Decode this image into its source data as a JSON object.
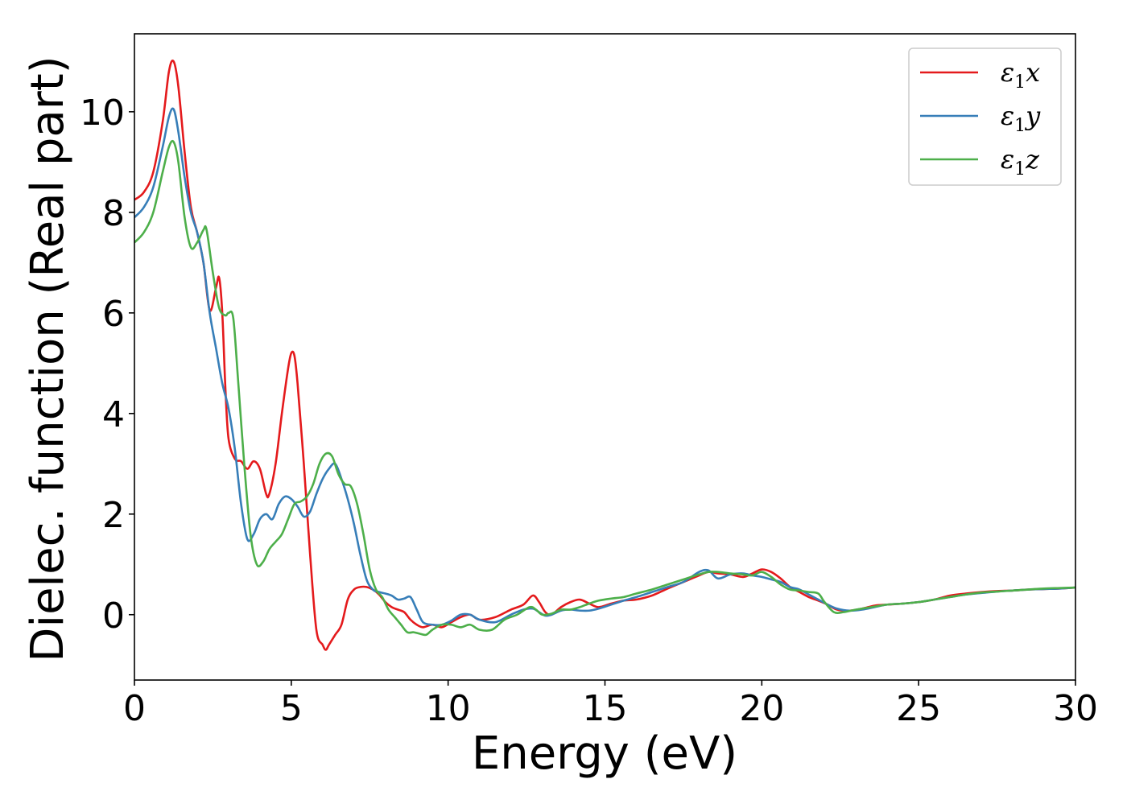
{
  "chart_data": {
    "type": "line",
    "title": "",
    "xlabel": "Energy (eV)",
    "ylabel": "Dielec. function (Real part)",
    "xlim": [
      0,
      30
    ],
    "ylim": [
      -1.3,
      11.55
    ],
    "xticks": [
      0,
      5,
      10,
      15,
      20,
      25,
      30
    ],
    "xtick_labels": [
      "0",
      "5",
      "10",
      "15",
      "20",
      "25",
      "30"
    ],
    "yticks": [
      0,
      2,
      4,
      6,
      8,
      10
    ],
    "ytick_labels": [
      "0",
      "2",
      "4",
      "6",
      "8",
      "10"
    ],
    "grid": false,
    "legend_position": "top-right",
    "series": [
      {
        "name": "ε1x",
        "legend_main": "ε",
        "legend_sub": "1",
        "legend_var": "x",
        "color": "#e41a1c",
        "x": [
          0,
          0.3,
          0.6,
          0.9,
          1.1,
          1.25,
          1.4,
          1.6,
          1.8,
          2.0,
          2.2,
          2.4,
          2.6,
          2.7,
          2.8,
          2.9,
          3.0,
          3.2,
          3.4,
          3.6,
          3.8,
          4.0,
          4.2,
          4.3,
          4.5,
          4.7,
          4.9,
          5.0,
          5.1,
          5.2,
          5.4,
          5.6,
          5.8,
          6.0,
          6.1,
          6.2,
          6.4,
          6.6,
          6.8,
          7.0,
          7.2,
          7.4,
          7.6,
          7.8,
          8.0,
          8.2,
          8.4,
          8.6,
          8.8,
          9.0,
          9.2,
          9.5,
          9.8,
          10.1,
          10.4,
          10.7,
          11.0,
          11.5,
          12.0,
          12.4,
          12.7,
          12.9,
          13.1,
          13.3,
          13.6,
          13.9,
          14.2,
          14.5,
          14.8,
          15.2,
          15.6,
          16.0,
          16.5,
          17.0,
          17.5,
          18.0,
          18.3,
          18.6,
          19.0,
          19.4,
          19.7,
          20.0,
          20.3,
          20.6,
          20.9,
          21.2,
          21.5,
          21.8,
          22.1,
          22.4,
          22.8,
          23.2,
          23.6,
          24.0,
          24.5,
          25.0,
          25.5,
          26.0,
          26.5,
          27.0,
          27.5,
          28.0,
          28.5,
          29.0,
          29.5,
          30.0
        ],
        "y": [
          8.25,
          8.4,
          8.8,
          9.8,
          10.8,
          11.0,
          10.5,
          9.2,
          8.1,
          7.6,
          7.0,
          6.05,
          6.5,
          6.7,
          6.0,
          4.5,
          3.5,
          3.1,
          3.05,
          2.9,
          3.05,
          2.9,
          2.4,
          2.4,
          3.0,
          4.0,
          4.9,
          5.2,
          5.15,
          4.6,
          3.0,
          1.2,
          -0.3,
          -0.6,
          -0.7,
          -0.6,
          -0.4,
          -0.2,
          0.3,
          0.5,
          0.55,
          0.55,
          0.5,
          0.4,
          0.25,
          0.15,
          0.1,
          0.05,
          -0.1,
          -0.2,
          -0.25,
          -0.2,
          -0.25,
          -0.15,
          -0.05,
          0.0,
          -0.1,
          -0.05,
          0.1,
          0.2,
          0.38,
          0.25,
          0.05,
          0.0,
          0.15,
          0.25,
          0.3,
          0.22,
          0.15,
          0.22,
          0.28,
          0.3,
          0.38,
          0.52,
          0.65,
          0.78,
          0.85,
          0.82,
          0.8,
          0.75,
          0.82,
          0.9,
          0.85,
          0.72,
          0.55,
          0.45,
          0.35,
          0.28,
          0.2,
          0.1,
          0.08,
          0.12,
          0.18,
          0.2,
          0.22,
          0.25,
          0.3,
          0.38,
          0.42,
          0.45,
          0.47,
          0.48,
          0.5,
          0.51,
          0.52,
          0.54
        ]
      },
      {
        "name": "ε1y",
        "legend_main": "ε",
        "legend_sub": "1",
        "legend_var": "y",
        "color": "#377eb8",
        "x": [
          0,
          0.3,
          0.6,
          0.9,
          1.1,
          1.25,
          1.4,
          1.6,
          1.8,
          2.0,
          2.2,
          2.4,
          2.6,
          2.8,
          3.0,
          3.2,
          3.4,
          3.6,
          3.8,
          4.0,
          4.2,
          4.4,
          4.6,
          4.8,
          5.0,
          5.2,
          5.4,
          5.6,
          5.8,
          6.0,
          6.2,
          6.4,
          6.6,
          6.8,
          7.0,
          7.2,
          7.4,
          7.6,
          7.8,
          8.0,
          8.2,
          8.4,
          8.6,
          8.8,
          9.0,
          9.2,
          9.5,
          9.8,
          10.1,
          10.4,
          10.7,
          11.0,
          11.5,
          12.0,
          12.4,
          12.7,
          12.9,
          13.1,
          13.3,
          13.6,
          13.9,
          14.2,
          14.5,
          14.8,
          15.2,
          15.6,
          16.0,
          16.5,
          17.0,
          17.5,
          18.0,
          18.3,
          18.6,
          19.0,
          19.4,
          19.7,
          20.0,
          20.3,
          20.6,
          20.9,
          21.2,
          21.5,
          21.8,
          22.1,
          22.4,
          22.8,
          23.2,
          23.6,
          24.0,
          24.5,
          25.0,
          25.5,
          26.0,
          26.5,
          27.0,
          27.5,
          28.0,
          28.5,
          29.0,
          29.5,
          30.0
        ],
        "y": [
          7.9,
          8.1,
          8.5,
          9.3,
          9.9,
          10.05,
          9.6,
          8.7,
          8.0,
          7.6,
          7.0,
          6.0,
          5.3,
          4.6,
          4.1,
          3.3,
          2.2,
          1.5,
          1.6,
          1.9,
          2.0,
          1.9,
          2.2,
          2.35,
          2.3,
          2.15,
          1.95,
          2.05,
          2.4,
          2.7,
          2.9,
          3.0,
          2.7,
          2.3,
          1.8,
          1.2,
          0.7,
          0.5,
          0.45,
          0.42,
          0.38,
          0.3,
          0.32,
          0.35,
          0.1,
          -0.15,
          -0.2,
          -0.2,
          -0.12,
          0.0,
          0.0,
          -0.1,
          -0.15,
          0.0,
          0.1,
          0.12,
          0.05,
          -0.02,
          0.0,
          0.08,
          0.1,
          0.08,
          0.08,
          0.12,
          0.2,
          0.28,
          0.35,
          0.45,
          0.55,
          0.65,
          0.85,
          0.88,
          0.72,
          0.8,
          0.82,
          0.78,
          0.75,
          0.7,
          0.65,
          0.55,
          0.5,
          0.4,
          0.3,
          0.2,
          0.12,
          0.08,
          0.1,
          0.15,
          0.2,
          0.22,
          0.25,
          0.3,
          0.35,
          0.4,
          0.43,
          0.46,
          0.48,
          0.5,
          0.51,
          0.52,
          0.54
        ]
      },
      {
        "name": "ε1z",
        "legend_main": "ε",
        "legend_sub": "1",
        "legend_var": "z",
        "color": "#4daf4a",
        "x": [
          0,
          0.3,
          0.6,
          0.9,
          1.1,
          1.25,
          1.4,
          1.6,
          1.8,
          2.0,
          2.2,
          2.3,
          2.5,
          2.7,
          2.9,
          3.0,
          3.15,
          3.3,
          3.5,
          3.7,
          3.9,
          4.1,
          4.3,
          4.5,
          4.7,
          4.9,
          5.1,
          5.3,
          5.5,
          5.7,
          5.9,
          6.1,
          6.3,
          6.5,
          6.7,
          6.9,
          7.1,
          7.3,
          7.5,
          7.7,
          7.9,
          8.1,
          8.3,
          8.5,
          8.7,
          8.9,
          9.1,
          9.3,
          9.5,
          9.8,
          10.1,
          10.4,
          10.7,
          11.0,
          11.4,
          11.8,
          12.2,
          12.6,
          12.8,
          13.0,
          13.3,
          13.6,
          13.9,
          14.2,
          14.5,
          14.8,
          15.2,
          15.6,
          16.0,
          16.5,
          17.0,
          17.5,
          18.0,
          18.3,
          18.6,
          19.0,
          19.4,
          19.7,
          20.0,
          20.3,
          20.6,
          20.9,
          21.2,
          21.5,
          21.8,
          22.0,
          22.3,
          22.6,
          23.0,
          23.5,
          24.0,
          24.5,
          25.0,
          25.5,
          26.0,
          26.5,
          27.0,
          27.5,
          28.0,
          28.5,
          29.0,
          29.5,
          30.0
        ],
        "y": [
          7.4,
          7.6,
          8.0,
          8.8,
          9.3,
          9.4,
          9.0,
          7.9,
          7.3,
          7.4,
          7.65,
          7.65,
          6.8,
          6.1,
          5.95,
          6.0,
          5.9,
          4.7,
          3.0,
          1.6,
          1.0,
          1.05,
          1.3,
          1.45,
          1.6,
          1.9,
          2.2,
          2.25,
          2.35,
          2.6,
          3.0,
          3.2,
          3.15,
          2.8,
          2.6,
          2.55,
          2.2,
          1.6,
          0.9,
          0.5,
          0.35,
          0.1,
          -0.05,
          -0.2,
          -0.35,
          -0.35,
          -0.38,
          -0.4,
          -0.3,
          -0.2,
          -0.2,
          -0.25,
          -0.2,
          -0.3,
          -0.3,
          -0.1,
          0.0,
          0.15,
          0.1,
          0.0,
          0.02,
          0.1,
          0.1,
          0.15,
          0.22,
          0.28,
          0.32,
          0.35,
          0.42,
          0.5,
          0.6,
          0.7,
          0.8,
          0.85,
          0.85,
          0.82,
          0.8,
          0.78,
          0.85,
          0.75,
          0.6,
          0.5,
          0.48,
          0.45,
          0.42,
          0.25,
          0.05,
          0.05,
          0.1,
          0.15,
          0.2,
          0.22,
          0.25,
          0.3,
          0.35,
          0.4,
          0.44,
          0.46,
          0.48,
          0.5,
          0.52,
          0.53,
          0.54
        ]
      }
    ]
  }
}
